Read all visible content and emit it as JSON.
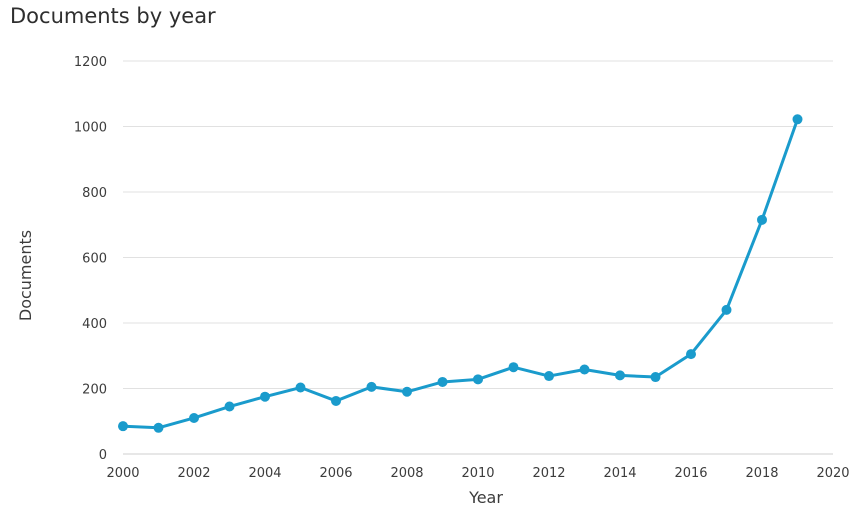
{
  "chart_data": {
    "type": "line",
    "title": "Documents by year",
    "xlabel": "Year",
    "ylabel": "Documents",
    "xlim": [
      2000,
      2020
    ],
    "ylim": [
      0,
      1200
    ],
    "x_ticks": [
      2000,
      2002,
      2004,
      2006,
      2008,
      2010,
      2012,
      2014,
      2016,
      2018,
      2020
    ],
    "y_ticks": [
      0,
      200,
      400,
      600,
      800,
      1000,
      1200
    ],
    "grid": "horizontal",
    "series": [
      {
        "color": "#1a9bcc",
        "x": [
          2000,
          2001,
          2002,
          2003,
          2004,
          2005,
          2006,
          2007,
          2008,
          2009,
          2010,
          2011,
          2012,
          2013,
          2014,
          2015,
          2016,
          2017,
          2018,
          2019
        ],
        "values": [
          85,
          80,
          110,
          145,
          175,
          203,
          162,
          205,
          190,
          220,
          228,
          265,
          238,
          258,
          240,
          235,
          305,
          440,
          715,
          1022
        ]
      }
    ]
  }
}
